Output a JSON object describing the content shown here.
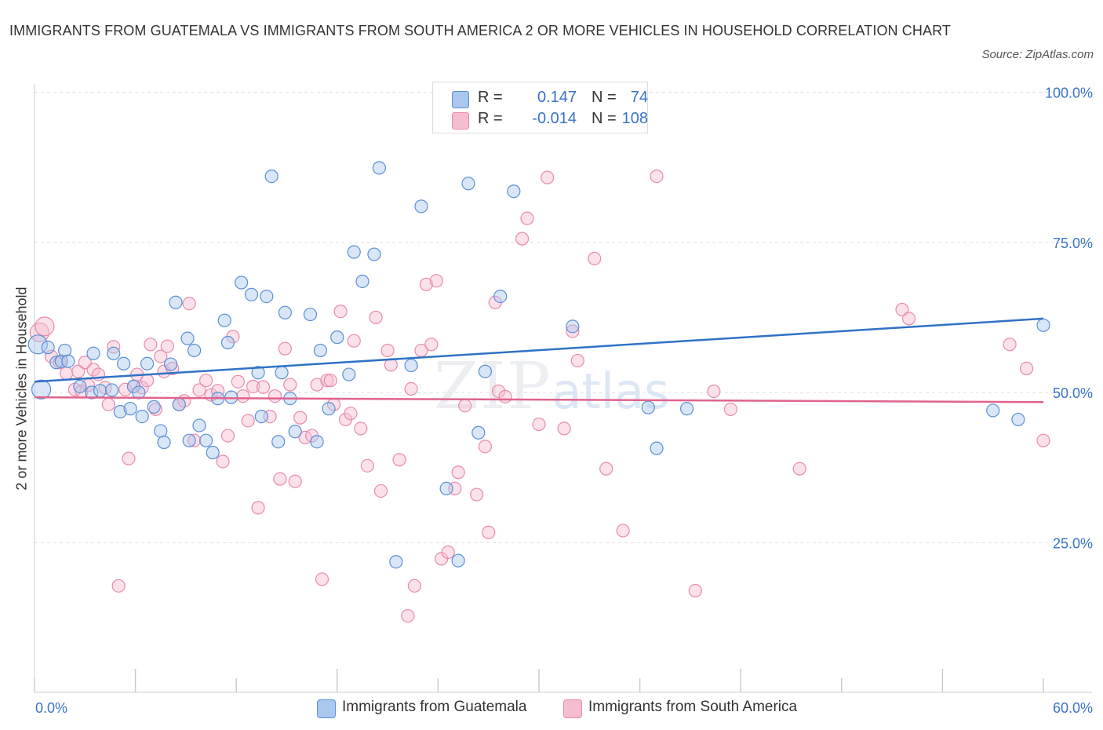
{
  "title": "IMMIGRANTS FROM GUATEMALA VS IMMIGRANTS FROM SOUTH AMERICA 2 OR MORE VEHICLES IN HOUSEHOLD CORRELATION CHART",
  "source": "Source: ZipAtlas.com",
  "watermark": {
    "zip": "ZIP",
    "atlas": "atlas"
  },
  "colors": {
    "blue_fill": "#aac8ee",
    "blue_stroke": "#5b8fd6",
    "blue_line": "#2f72c6",
    "pink_fill": "#f6bdd0",
    "pink_stroke": "#e88aac",
    "pink_line": "#e0638e",
    "tick_text": "#3a73c9",
    "grid": "#dddddd"
  },
  "legend": {
    "series": [
      {
        "r_label": "R =",
        "r_value": "0.147",
        "n_label": "N =",
        "n_value": "74"
      },
      {
        "r_label": "R =",
        "r_value": "-0.014",
        "n_label": "N =",
        "n_value": "108"
      }
    ]
  },
  "bottom_legend": [
    "Immigrants from Guatemala",
    "Immigrants from South America"
  ],
  "chart_data": {
    "type": "scatter",
    "title": "IMMIGRANTS FROM GUATEMALA VS IMMIGRANTS FROM SOUTH AMERICA 2 OR MORE VEHICLES IN HOUSEHOLD CORRELATION CHART",
    "xlabel": "",
    "ylabel": "2 or more Vehicles in Household",
    "xlim": [
      0,
      60
    ],
    "ylim": [
      0,
      105
    ],
    "x_tick_labels": [
      "0.0%",
      "60.0%"
    ],
    "y_ticks": [
      25,
      50,
      75,
      100
    ],
    "y_tick_labels": [
      "25.0%",
      "50.0%",
      "75.0%",
      "100.0%"
    ],
    "grid": true,
    "series": [
      {
        "name": "Immigrants from Guatemala",
        "r": 0.147,
        "n": 74,
        "trend": {
          "x": [
            0,
            60
          ],
          "y": [
            51.8,
            62.3
          ]
        },
        "points": [
          [
            0.2,
            58.0
          ],
          [
            0.4,
            50.5
          ],
          [
            0.8,
            57.5
          ],
          [
            1.3,
            55.0
          ],
          [
            1.6,
            55.2
          ],
          [
            1.8,
            57.0
          ],
          [
            2.0,
            55.2
          ],
          [
            2.7,
            51.0
          ],
          [
            3.4,
            50.0
          ],
          [
            3.5,
            56.5
          ],
          [
            3.9,
            50.3
          ],
          [
            4.6,
            50.4
          ],
          [
            4.7,
            56.5
          ],
          [
            5.1,
            46.8
          ],
          [
            5.3,
            54.8
          ],
          [
            5.7,
            47.3
          ],
          [
            5.9,
            51.0
          ],
          [
            6.2,
            50.0
          ],
          [
            6.4,
            46.0
          ],
          [
            6.7,
            54.8
          ],
          [
            7.1,
            47.6
          ],
          [
            7.5,
            43.6
          ],
          [
            7.7,
            41.7
          ],
          [
            8.1,
            54.7
          ],
          [
            8.4,
            65.0
          ],
          [
            8.6,
            48.0
          ],
          [
            9.1,
            59.0
          ],
          [
            9.2,
            42.0
          ],
          [
            9.5,
            57.0
          ],
          [
            9.8,
            44.5
          ],
          [
            10.2,
            42.0
          ],
          [
            10.6,
            40.0
          ],
          [
            10.9,
            49.0
          ],
          [
            11.3,
            62.0
          ],
          [
            11.5,
            58.3
          ],
          [
            11.7,
            49.2
          ],
          [
            12.3,
            68.3
          ],
          [
            12.9,
            66.3
          ],
          [
            13.3,
            53.3
          ],
          [
            13.5,
            46.0
          ],
          [
            13.8,
            66.0
          ],
          [
            14.1,
            86.0
          ],
          [
            14.5,
            41.8
          ],
          [
            14.7,
            53.3
          ],
          [
            14.9,
            63.3
          ],
          [
            15.2,
            49.0
          ],
          [
            15.5,
            43.5
          ],
          [
            16.4,
            63.0
          ],
          [
            16.8,
            41.8
          ],
          [
            17.0,
            57.0
          ],
          [
            17.5,
            47.3
          ],
          [
            18.0,
            59.2
          ],
          [
            18.7,
            53.0
          ],
          [
            19.0,
            73.4
          ],
          [
            19.5,
            68.5
          ],
          [
            20.2,
            73.0
          ],
          [
            20.5,
            87.4
          ],
          [
            21.5,
            21.8
          ],
          [
            22.4,
            54.5
          ],
          [
            23.0,
            81.0
          ],
          [
            24.5,
            34.0
          ],
          [
            25.2,
            22.0
          ],
          [
            25.8,
            84.8
          ],
          [
            26.4,
            43.3
          ],
          [
            26.8,
            53.5
          ],
          [
            27.7,
            66.0
          ],
          [
            28.5,
            83.5
          ],
          [
            32.0,
            61.0
          ],
          [
            36.5,
            47.5
          ],
          [
            37.0,
            40.7
          ],
          [
            38.8,
            47.3
          ],
          [
            57.0,
            47.0
          ],
          [
            58.5,
            45.5
          ],
          [
            60.0,
            61.2
          ]
        ]
      },
      {
        "name": "Immigrants from South America",
        "r": -0.014,
        "n": 108,
        "trend": {
          "x": [
            0,
            60
          ],
          "y": [
            49.2,
            48.4
          ]
        },
        "points": [
          [
            0.3,
            60.0
          ],
          [
            0.6,
            61.0
          ],
          [
            1.0,
            56.0
          ],
          [
            1.5,
            55.0
          ],
          [
            1.9,
            53.2
          ],
          [
            2.4,
            50.5
          ],
          [
            2.6,
            53.5
          ],
          [
            2.8,
            50.2
          ],
          [
            3.0,
            55.0
          ],
          [
            3.2,
            51.2
          ],
          [
            3.5,
            53.8
          ],
          [
            3.8,
            53.0
          ],
          [
            4.2,
            50.8
          ],
          [
            4.4,
            48.0
          ],
          [
            4.7,
            57.6
          ],
          [
            5.0,
            17.8
          ],
          [
            5.4,
            50.5
          ],
          [
            5.6,
            39.0
          ],
          [
            5.9,
            51.0
          ],
          [
            6.1,
            53.0
          ],
          [
            6.4,
            50.8
          ],
          [
            6.7,
            52.0
          ],
          [
            6.9,
            58.0
          ],
          [
            7.2,
            47.2
          ],
          [
            7.5,
            56.0
          ],
          [
            7.7,
            53.5
          ],
          [
            7.9,
            57.7
          ],
          [
            8.2,
            54.0
          ],
          [
            8.6,
            48.0
          ],
          [
            8.9,
            48.6
          ],
          [
            9.2,
            64.8
          ],
          [
            9.5,
            42.0
          ],
          [
            9.8,
            50.4
          ],
          [
            10.2,
            52.0
          ],
          [
            10.5,
            49.6
          ],
          [
            10.9,
            50.3
          ],
          [
            11.2,
            38.5
          ],
          [
            11.5,
            42.8
          ],
          [
            11.8,
            59.3
          ],
          [
            12.1,
            51.8
          ],
          [
            12.4,
            49.4
          ],
          [
            12.7,
            45.3
          ],
          [
            13.0,
            51.0
          ],
          [
            13.3,
            30.8
          ],
          [
            13.6,
            50.9
          ],
          [
            14.0,
            46.0
          ],
          [
            14.3,
            49.4
          ],
          [
            14.6,
            35.6
          ],
          [
            14.9,
            57.3
          ],
          [
            15.2,
            51.3
          ],
          [
            15.5,
            35.2
          ],
          [
            15.8,
            45.8
          ],
          [
            16.1,
            42.5
          ],
          [
            16.5,
            42.8
          ],
          [
            16.8,
            51.3
          ],
          [
            17.1,
            18.9
          ],
          [
            17.4,
            52.0
          ],
          [
            17.6,
            52.0
          ],
          [
            17.8,
            48.0
          ],
          [
            18.2,
            63.5
          ],
          [
            18.5,
            45.5
          ],
          [
            18.8,
            46.5
          ],
          [
            19.0,
            58.6
          ],
          [
            19.4,
            44.0
          ],
          [
            19.8,
            37.8
          ],
          [
            20.3,
            62.5
          ],
          [
            20.6,
            33.6
          ],
          [
            21.0,
            57.0
          ],
          [
            21.2,
            54.6
          ],
          [
            21.7,
            38.8
          ],
          [
            22.2,
            12.8
          ],
          [
            22.4,
            50.6
          ],
          [
            22.6,
            17.8
          ],
          [
            23.0,
            57.0
          ],
          [
            23.3,
            68.0
          ],
          [
            23.6,
            58.0
          ],
          [
            23.9,
            68.6
          ],
          [
            24.2,
            22.3
          ],
          [
            24.6,
            23.4
          ],
          [
            25.0,
            34.0
          ],
          [
            25.2,
            36.7
          ],
          [
            25.6,
            47.8
          ],
          [
            26.3,
            33.0
          ],
          [
            26.8,
            41.0
          ],
          [
            27.0,
            26.7
          ],
          [
            27.4,
            65.0
          ],
          [
            27.6,
            50.2
          ],
          [
            28.0,
            49.3
          ],
          [
            29.0,
            75.6
          ],
          [
            29.3,
            79.0
          ],
          [
            30.0,
            44.7
          ],
          [
            30.5,
            85.8
          ],
          [
            31.5,
            44.0
          ],
          [
            32.0,
            60.2
          ],
          [
            32.3,
            55.3
          ],
          [
            33.3,
            72.3
          ],
          [
            34.0,
            37.3
          ],
          [
            35.0,
            27.0
          ],
          [
            37.0,
            86.0
          ],
          [
            39.3,
            17.0
          ],
          [
            40.4,
            50.2
          ],
          [
            41.4,
            47.2
          ],
          [
            45.5,
            37.3
          ],
          [
            51.6,
            63.8
          ],
          [
            52.0,
            62.3
          ],
          [
            58.0,
            58.0
          ],
          [
            59.0,
            54.0
          ],
          [
            60.0,
            42.0
          ]
        ]
      }
    ]
  }
}
